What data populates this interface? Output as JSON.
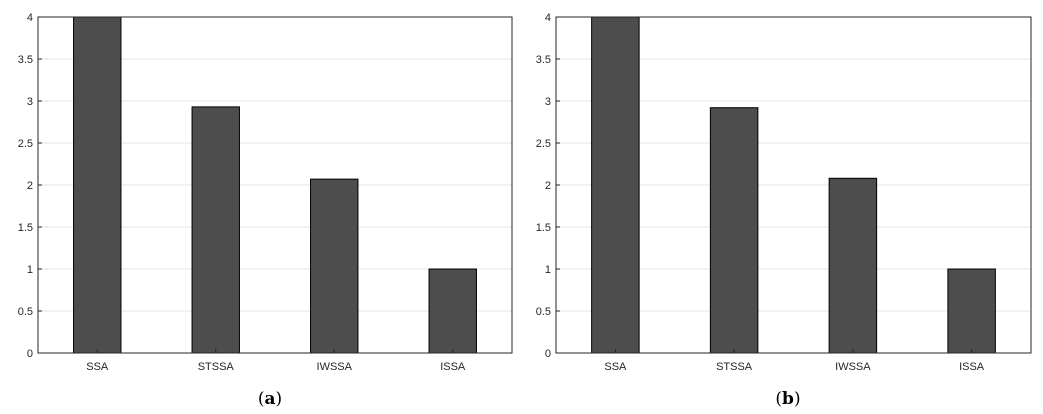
{
  "chart_data": [
    {
      "type": "bar",
      "caption": {
        "open": "(",
        "letter": "a",
        "close": ")"
      },
      "categories": [
        "SSA",
        "STSSA",
        "IWSSA",
        "ISSA"
      ],
      "values": [
        4.0,
        2.93,
        2.07,
        1.0
      ],
      "ylim": [
        0,
        4
      ],
      "yticks": [
        "0",
        "0.5",
        "1",
        "1.5",
        "2",
        "2.5",
        "3",
        "3.5",
        "4"
      ],
      "grid": true,
      "bar_color": "#4d4d4d",
      "title": "",
      "xlabel": "",
      "ylabel": ""
    },
    {
      "type": "bar",
      "caption": {
        "open": "(",
        "letter": "b",
        "close": ")"
      },
      "categories": [
        "SSA",
        "STSSA",
        "IWSSA",
        "ISSA"
      ],
      "values": [
        4.0,
        2.92,
        2.08,
        1.0
      ],
      "ylim": [
        0,
        4
      ],
      "yticks": [
        "0",
        "0.5",
        "1",
        "1.5",
        "2",
        "2.5",
        "3",
        "3.5",
        "4"
      ],
      "grid": true,
      "bar_color": "#4d4d4d",
      "title": "",
      "xlabel": "",
      "ylabel": ""
    }
  ]
}
